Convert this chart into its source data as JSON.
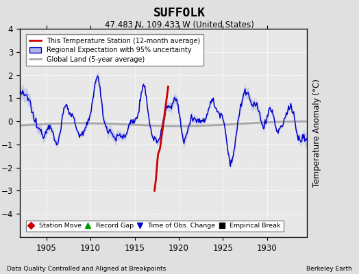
{
  "title": "SUFFOLK",
  "subtitle": "47.483 N, 109.433 W (United States)",
  "ylabel": "Temperature Anomaly (°C)",
  "footer_left": "Data Quality Controlled and Aligned at Breakpoints",
  "footer_right": "Berkeley Earth",
  "xlim": [
    1902.0,
    1934.5
  ],
  "ylim": [
    -5,
    4
  ],
  "yticks": [
    -4,
    -3,
    -2,
    -1,
    0,
    1,
    2,
    3,
    4
  ],
  "xticks": [
    1905,
    1910,
    1915,
    1920,
    1925,
    1930
  ],
  "bg_color": "#e0e0e0",
  "plot_bg_color": "#e8e8e8",
  "grid_color": "#ffffff",
  "regional_line_color": "#0000cc",
  "regional_fill_color": "#b0b8e8",
  "station_line_color": "#cc0000",
  "global_line_color": "#aaaaaa",
  "legend_items": [
    {
      "label": "This Temperature Station (12-month average)",
      "color": "#cc0000",
      "lw": 2
    },
    {
      "label": "Regional Expectation with 95% uncertainty",
      "color": "#0000cc",
      "fill": "#b0b8e8",
      "lw": 1.5
    },
    {
      "label": "Global Land (5-year average)",
      "color": "#aaaaaa",
      "lw": 2
    }
  ],
  "marker_legend": [
    {
      "marker": "D",
      "color": "#cc0000",
      "label": "Station Move"
    },
    {
      "marker": "^",
      "color": "#009900",
      "label": "Record Gap"
    },
    {
      "marker": "v",
      "color": "#0000cc",
      "label": "Time of Obs. Change"
    },
    {
      "marker": "s",
      "color": "#000000",
      "label": "Empirical Break"
    }
  ]
}
